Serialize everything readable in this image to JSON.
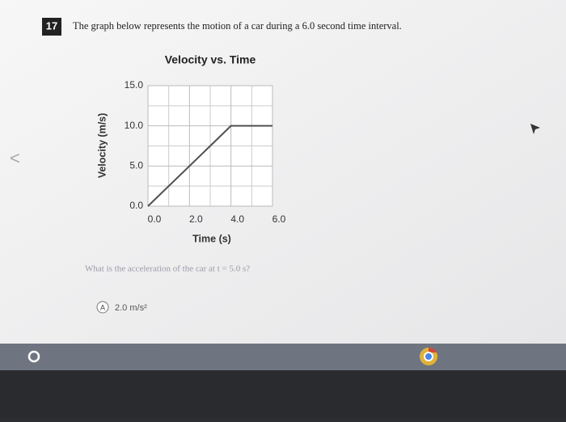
{
  "question": {
    "number": "17",
    "text": "The graph below represents the motion of a car during a 6.0 second time interval."
  },
  "chart_data": {
    "type": "line",
    "title": "Velocity vs. Time",
    "x_label": "Time (s)",
    "y_label": "Velocity (m/s)",
    "x": [
      0,
      4,
      6
    ],
    "series": [
      {
        "values": [
          0,
          10,
          10
        ],
        "color": "#505050"
      }
    ],
    "xlim": [
      0,
      6
    ],
    "ylim": [
      0,
      15
    ],
    "xticks": [
      {
        "value": 0,
        "label": "0.0"
      },
      {
        "value": 2,
        "label": "2.0"
      },
      {
        "value": 4,
        "label": "4.0"
      },
      {
        "value": 6,
        "label": "6.0"
      }
    ],
    "yticks": [
      {
        "value": 0,
        "label": "0.0"
      },
      {
        "value": 5,
        "label": "5.0"
      },
      {
        "value": 10,
        "label": "10.0"
      },
      {
        "value": 15,
        "label": "15.0"
      }
    ],
    "grid": true
  },
  "prompt": "What is the acceleration of the car at t = 5.0 s?",
  "options": [
    {
      "letter": "A",
      "text": "2.0 m/s²"
    }
  ]
}
